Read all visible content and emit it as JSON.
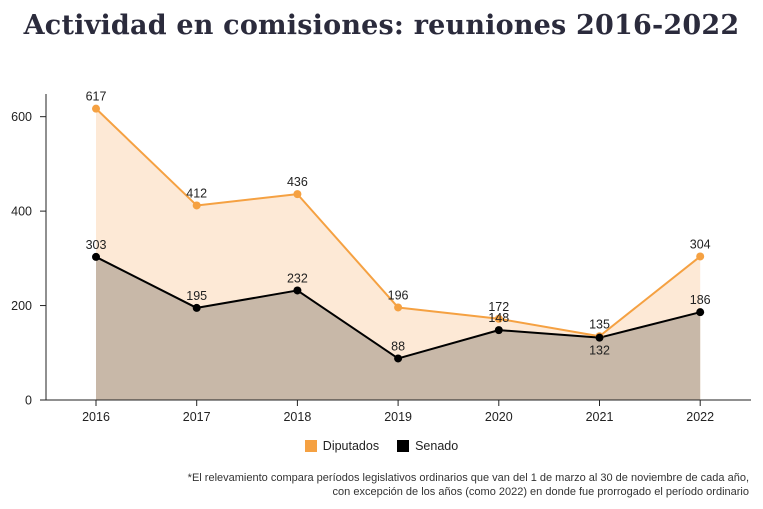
{
  "title": "Actividad en comisiones: reuniones 2016-2022",
  "chart_data": {
    "type": "area",
    "title": "Actividad en comisiones: reuniones 2016-2022",
    "categories": [
      "2016",
      "2017",
      "2018",
      "2019",
      "2020",
      "2021",
      "2022"
    ],
    "series": [
      {
        "name": "Diputados",
        "values": [
          617,
          412,
          436,
          196,
          172,
          135,
          304
        ],
        "color": "#f5a142",
        "fill": "#fde9d6"
      },
      {
        "name": "Senado",
        "values": [
          303,
          195,
          232,
          88,
          148,
          132,
          186
        ],
        "color": "#000000",
        "fill": "#c8b8a8"
      }
    ],
    "yticks": [
      0,
      200,
      400,
      600
    ],
    "ylim": [
      0,
      650
    ],
    "grid": false,
    "legend_position": "bottom"
  },
  "legend": [
    {
      "label": "Diputados",
      "color": "#f5a142"
    },
    {
      "label": "Senado",
      "color": "#000000"
    }
  ],
  "footnote": {
    "line1": "*El relevamiento compara períodos legislativos ordinarios que van del 1 de marzo al 30 de noviembre de cada año,",
    "line2": "con excepción de los años (como 2022) en donde fue prorrogado el período ordinario"
  }
}
